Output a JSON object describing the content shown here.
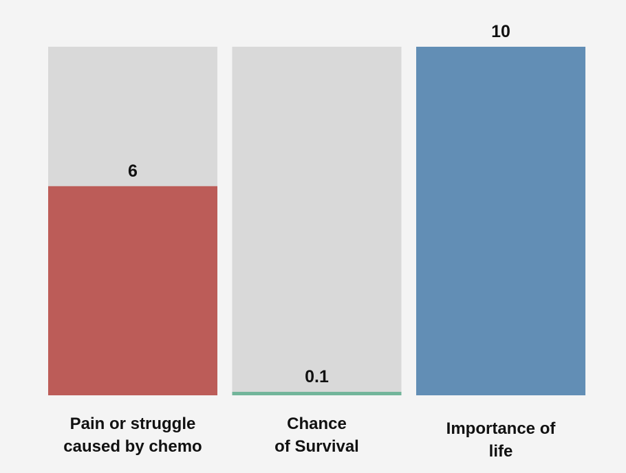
{
  "chart_data": {
    "type": "bar",
    "categories": [
      [
        "Pain or struggle",
        "caused by chemo"
      ],
      [
        "Chance",
        "of Survival"
      ],
      [
        "Importance of",
        "life"
      ]
    ],
    "values": [
      6,
      0.1,
      10
    ],
    "value_labels": [
      "6",
      "0.1",
      "10"
    ],
    "ylim": [
      0,
      10
    ],
    "grid": false,
    "legend": "none",
    "title": "",
    "xlabel": "",
    "ylabel": "",
    "colors": {
      "bars": [
        "#bc5c58",
        "#72b59a",
        "#628eb5"
      ],
      "track": "#d9d9d9",
      "background": "#f4f4f4",
      "text": "#111111"
    }
  }
}
